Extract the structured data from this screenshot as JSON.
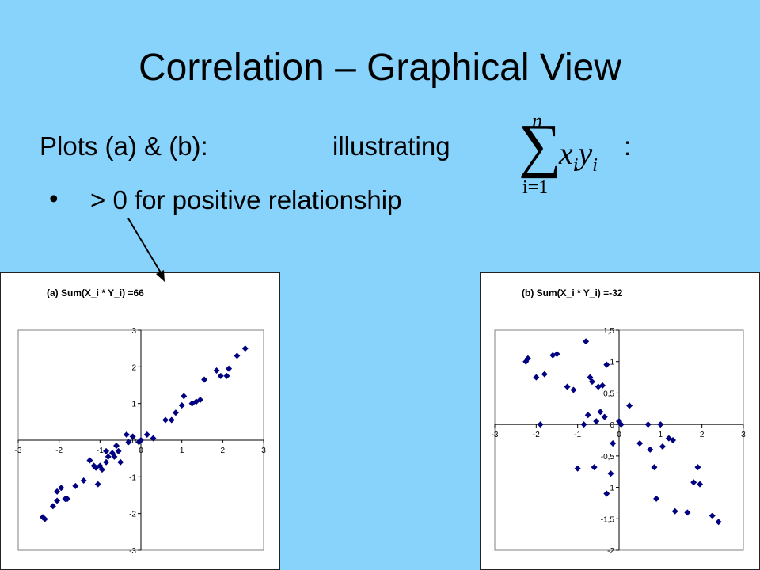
{
  "slide": {
    "title": "Correlation – Graphical View",
    "subtitle_prefix": "Plots (a) & (b):",
    "subtitle_word": "illustrating",
    "formula": {
      "upper": "n",
      "sigma": "∑",
      "lower": "i=1",
      "x": "x",
      "x_sub": "i",
      "y": "y",
      "y_sub": "i"
    },
    "colon": ":",
    "bullet_symbol": "•",
    "bullet_text": "> 0  for positive relationship"
  },
  "colors": {
    "background": "#87d3fb",
    "marker": "#000080",
    "panel": "#ffffff"
  },
  "chart_data": [
    {
      "type": "scatter",
      "title": "(a)   Sum(X_i * Y_i) =66",
      "xlim": [
        -3,
        3
      ],
      "ylim": [
        -3,
        3
      ],
      "xticks": [
        -3,
        -2,
        -1,
        0,
        1,
        2,
        3
      ],
      "yticks": [
        -3,
        -2,
        -1,
        0,
        1,
        2,
        3
      ],
      "x_tick_labels": [
        "-3",
        "-2",
        "-1",
        "0",
        "1",
        "2",
        "3"
      ],
      "y_tick_labels": [
        "-3",
        "-2",
        "-1",
        "0",
        "1",
        "2",
        "3"
      ],
      "grid": false,
      "marker": "diamond",
      "points": [
        [
          -2.4,
          -2.1
        ],
        [
          -2.35,
          -2.15
        ],
        [
          -2.15,
          -1.8
        ],
        [
          -2.05,
          -1.65
        ],
        [
          -2.05,
          -1.4
        ],
        [
          -1.95,
          -1.3
        ],
        [
          -1.85,
          -1.6
        ],
        [
          -1.8,
          -1.6
        ],
        [
          -1.6,
          -1.25
        ],
        [
          -1.4,
          -1.1
        ],
        [
          -1.25,
          -0.55
        ],
        [
          -1.15,
          -0.7
        ],
        [
          -1.1,
          -0.75
        ],
        [
          -1.05,
          -1.2
        ],
        [
          -1.0,
          -0.7
        ],
        [
          -0.95,
          -0.8
        ],
        [
          -0.85,
          -0.3
        ],
        [
          -0.85,
          -0.6
        ],
        [
          -0.8,
          -0.45
        ],
        [
          -0.7,
          -0.35
        ],
        [
          -0.65,
          -0.45
        ],
        [
          -0.6,
          -0.15
        ],
        [
          -0.55,
          -0.3
        ],
        [
          -0.5,
          -0.6
        ],
        [
          -0.35,
          0.15
        ],
        [
          -0.3,
          -0.05
        ],
        [
          -0.2,
          0.1
        ],
        [
          -0.05,
          -0.05
        ],
        [
          0.0,
          0.0
        ],
        [
          0.15,
          0.15
        ],
        [
          0.3,
          0.05
        ],
        [
          0.6,
          0.55
        ],
        [
          0.75,
          0.55
        ],
        [
          0.85,
          0.75
        ],
        [
          1.0,
          0.95
        ],
        [
          1.05,
          1.2
        ],
        [
          1.25,
          1.0
        ],
        [
          1.35,
          1.05
        ],
        [
          1.45,
          1.1
        ],
        [
          1.55,
          1.65
        ],
        [
          1.85,
          1.9
        ],
        [
          1.95,
          1.75
        ],
        [
          2.1,
          1.75
        ],
        [
          2.15,
          1.95
        ],
        [
          2.35,
          2.3
        ],
        [
          2.55,
          2.5
        ]
      ]
    },
    {
      "type": "scatter",
      "title": "(b)   Sum(X_i * Y_i) =-32",
      "xlim": [
        -3,
        3
      ],
      "ylim": [
        -2,
        1.5
      ],
      "xticks": [
        -3,
        -2,
        -1,
        0,
        1,
        2,
        3
      ],
      "yticks": [
        -2,
        -1.5,
        -1,
        -0.5,
        0,
        0.5,
        1,
        1.5
      ],
      "x_tick_labels": [
        "-3",
        "-2",
        "-1",
        "0",
        "1",
        "2",
        "3"
      ],
      "y_tick_labels": [
        "-2",
        "-1,5",
        "-1",
        "-0,5",
        "0",
        "0,5",
        "1",
        "1,5"
      ],
      "grid": false,
      "marker": "diamond",
      "points": [
        [
          -2.25,
          1.0
        ],
        [
          -2.2,
          1.05
        ],
        [
          -2.0,
          0.75
        ],
        [
          -1.9,
          0.0
        ],
        [
          -1.8,
          0.8
        ],
        [
          -1.6,
          1.1
        ],
        [
          -1.5,
          1.12
        ],
        [
          -1.25,
          0.6
        ],
        [
          -1.1,
          0.55
        ],
        [
          -1.0,
          -0.7
        ],
        [
          -0.85,
          0.0
        ],
        [
          -0.8,
          1.32
        ],
        [
          -0.75,
          0.15
        ],
        [
          -0.7,
          0.75
        ],
        [
          -0.65,
          0.68
        ],
        [
          -0.6,
          -0.68
        ],
        [
          -0.55,
          0.05
        ],
        [
          -0.5,
          0.6
        ],
        [
          -0.45,
          0.2
        ],
        [
          -0.4,
          0.62
        ],
        [
          -0.35,
          0.12
        ],
        [
          -0.3,
          0.95
        ],
        [
          -0.3,
          -1.1
        ],
        [
          -0.2,
          -0.78
        ],
        [
          -0.15,
          -0.3
        ],
        [
          0.0,
          0.05
        ],
        [
          0.05,
          0.0
        ],
        [
          0.25,
          0.3
        ],
        [
          0.5,
          -0.3
        ],
        [
          0.7,
          0.0
        ],
        [
          0.75,
          -0.4
        ],
        [
          0.85,
          -0.68
        ],
        [
          0.9,
          -1.18
        ],
        [
          1.0,
          0.0
        ],
        [
          1.05,
          -0.35
        ],
        [
          1.2,
          -0.22
        ],
        [
          1.3,
          -0.25
        ],
        [
          1.35,
          -1.38
        ],
        [
          1.65,
          -1.4
        ],
        [
          1.8,
          -0.92
        ],
        [
          1.9,
          -0.68
        ],
        [
          1.95,
          -0.95
        ],
        [
          2.25,
          -1.45
        ],
        [
          2.4,
          -1.55
        ]
      ]
    }
  ]
}
